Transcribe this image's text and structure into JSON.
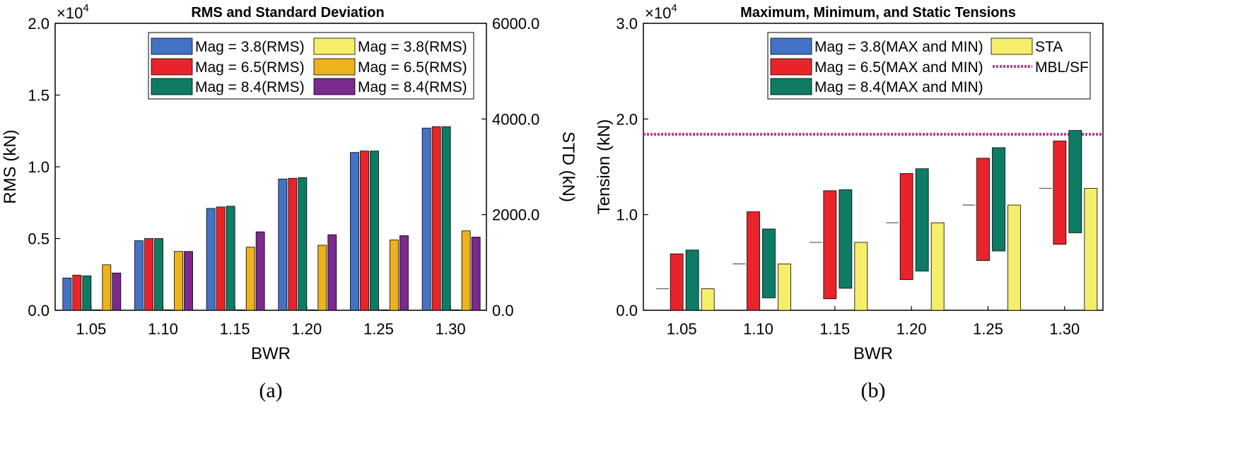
{
  "chart_data": [
    {
      "type": "bar",
      "title": "RMS and Standard Deviation",
      "caption": "(a)",
      "xlabel": "BWR",
      "ylabel": "RMS (kN)",
      "ylabel_right": "STD (kN)",
      "exponent_label": "×10",
      "exponent_power": "4",
      "categories": [
        "1.05",
        "1.10",
        "1.15",
        "1.20",
        "1.25",
        "1.30"
      ],
      "ylim": [
        0,
        20000
      ],
      "yticks": [
        "0.0",
        "0.5",
        "1.0",
        "1.5",
        "2.0"
      ],
      "ylim_right": [
        0,
        6000
      ],
      "yticks_right": [
        "0.0",
        "2000.0",
        "4000.0",
        "6000.0"
      ],
      "series": [
        {
          "name": "Mag = 3.8(RMS)",
          "axis": "left",
          "color": "#4472C4",
          "values": [
            2250,
            4850,
            7100,
            9150,
            11000,
            12700
          ]
        },
        {
          "name": "Mag = 6.5(RMS)",
          "axis": "left",
          "color": "#E8242A",
          "values": [
            2450,
            5000,
            7200,
            9200,
            11100,
            12800
          ]
        },
        {
          "name": "Mag = 8.4(RMS)",
          "axis": "left",
          "color": "#0E7C64",
          "values": [
            2400,
            5000,
            7250,
            9250,
            11100,
            12800
          ]
        },
        {
          "name": "Mag = 3.8(RMS)",
          "axis": "right",
          "color": "#F5EE6A",
          "values": [
            10,
            10,
            10,
            10,
            10,
            10
          ]
        },
        {
          "name": "Mag = 6.5(RMS)",
          "axis": "right",
          "color": "#EDB21C",
          "values": [
            950,
            1230,
            1320,
            1360,
            1470,
            1660
          ]
        },
        {
          "name": "Mag = 8.4(RMS)",
          "axis": "right",
          "color": "#7B2A8E",
          "values": [
            780,
            1230,
            1640,
            1580,
            1560,
            1530
          ]
        }
      ]
    },
    {
      "type": "bar",
      "subtype": "floating-range",
      "title": "Maximum, Minimum, and Static Tensions",
      "caption": "(b)",
      "xlabel": "BWR",
      "ylabel": "Tension (kN)",
      "exponent_label": "×10",
      "exponent_power": "4",
      "categories": [
        "1.05",
        "1.10",
        "1.15",
        "1.20",
        "1.25",
        "1.30"
      ],
      "ylim": [
        0,
        30000
      ],
      "yticks": [
        "0.0",
        "1.0",
        "2.0",
        "3.0"
      ],
      "series": [
        {
          "name": "Mag = 3.8(MAX and MIN)",
          "color": "#4472C4",
          "min": [
            2250,
            4850,
            7100,
            9150,
            11000,
            12750
          ],
          "max": [
            2250,
            4850,
            7100,
            9150,
            11000,
            12750
          ]
        },
        {
          "name": "Mag = 6.5(MAX and MIN)",
          "color": "#E8242A",
          "min": [
            0,
            0,
            1200,
            3200,
            5200,
            6900
          ],
          "max": [
            5900,
            10300,
            12500,
            14300,
            15900,
            17700
          ]
        },
        {
          "name": "Mag = 8.4(MAX and MIN)",
          "color": "#0E7C64",
          "min": [
            0,
            1300,
            2300,
            4100,
            6200,
            8100
          ],
          "max": [
            6300,
            8500,
            12600,
            14800,
            17000,
            18800
          ]
        },
        {
          "name": "STA",
          "color": "#F5EE6A",
          "min": [
            0,
            0,
            0,
            0,
            0,
            0
          ],
          "max": [
            2250,
            4850,
            7100,
            9150,
            11000,
            12750
          ]
        }
      ],
      "reference_line": {
        "name": "MBL/SF",
        "value": 18400,
        "color": "#C0399A"
      }
    }
  ]
}
